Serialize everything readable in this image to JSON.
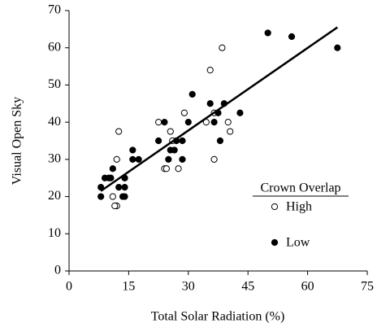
{
  "chart_data": {
    "type": "scatter",
    "x_label": "Total Solar Radiation (%)",
    "y_label": "Visual Open Sky",
    "legend_title": "Crown Overlap",
    "legend": "right",
    "xlim": [
      0,
      75
    ],
    "xticks": [
      0,
      15,
      30,
      45,
      60,
      75
    ],
    "ylim": [
      0,
      70
    ],
    "yticks": [
      0,
      10,
      20,
      30,
      40,
      50,
      60,
      70
    ],
    "series": [
      {
        "name": "High",
        "color": "#000000",
        "filled": false,
        "x": [
          12.5,
          38.5,
          35.5,
          11,
          12,
          12,
          11.5,
          22.5,
          25.5,
          24,
          24.5,
          27.5,
          29,
          34.5,
          36.5,
          36.5,
          40,
          40.5,
          26,
          14
        ],
        "values": [
          37.5,
          60,
          54,
          20,
          30,
          17.5,
          17.5,
          40,
          37.5,
          27.5,
          27.5,
          27.5,
          42.5,
          40,
          42.5,
          30,
          40,
          37.5,
          35,
          25
        ]
      },
      {
        "name": "Low",
        "color": "#000000",
        "filled": true,
        "x": [
          8,
          8,
          9,
          10,
          11,
          10.5,
          12.5,
          13.5,
          14,
          14,
          14,
          16,
          16,
          17.5,
          22.5,
          24,
          25,
          25.5,
          26.5,
          27,
          28.5,
          28.5,
          30,
          31,
          35.5,
          36.5,
          37.5,
          38,
          39,
          43,
          50,
          56,
          67.5
        ],
        "values": [
          20,
          22.5,
          25,
          25,
          27.5,
          25,
          22.5,
          20,
          20,
          22.5,
          25,
          30,
          32.5,
          30,
          35,
          40,
          30,
          32.5,
          32.5,
          35,
          35,
          30,
          40,
          47.5,
          45,
          40,
          42.5,
          35,
          45,
          42.5,
          64,
          63,
          60
        ]
      }
    ],
    "trendline": {
      "x": [
        8,
        67.5
      ],
      "values": [
        21.5,
        65.5
      ]
    }
  }
}
